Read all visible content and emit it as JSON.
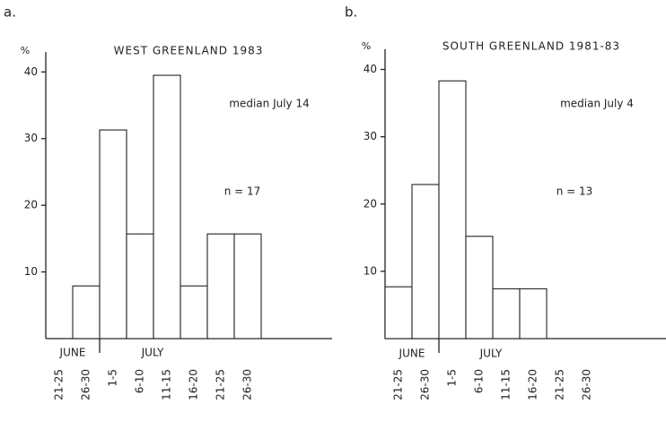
{
  "chart_data": [
    {
      "type": "bar",
      "panel_label": "a.",
      "title": "WEST GREENLAND  1983",
      "y_label": "%",
      "annotations": [
        "median  July 14",
        "n = 17"
      ],
      "months": [
        "JUNE",
        "JULY"
      ],
      "categories": [
        "21-25",
        "26-30",
        "1-5",
        "6-10",
        "11-15",
        "16-20",
        "21-25",
        "26-30"
      ],
      "values": [
        0,
        7.9,
        31.3,
        15.7,
        39.5,
        7.9,
        15.7,
        15.7
      ],
      "ylim": [
        0,
        43
      ],
      "yticks": [
        10,
        20,
        30,
        40
      ],
      "color": "#ffffff"
    },
    {
      "type": "bar",
      "panel_label": "b.",
      "title": "SOUTH GREENLAND  1981-83",
      "y_label": "%",
      "annotations": [
        "median  July 4",
        "n = 13"
      ],
      "months": [
        "JUNE",
        "JULY"
      ],
      "categories": [
        "21-25",
        "26-30",
        "1-5",
        "6-10",
        "11-15",
        "16-20",
        "21-25",
        "26-30"
      ],
      "values": [
        7.7,
        22.9,
        38.3,
        15.2,
        7.4,
        7.4,
        0,
        0
      ],
      "ylim": [
        0,
        43
      ],
      "yticks": [
        10,
        20,
        30,
        40
      ],
      "color": "#ffffff"
    }
  ]
}
